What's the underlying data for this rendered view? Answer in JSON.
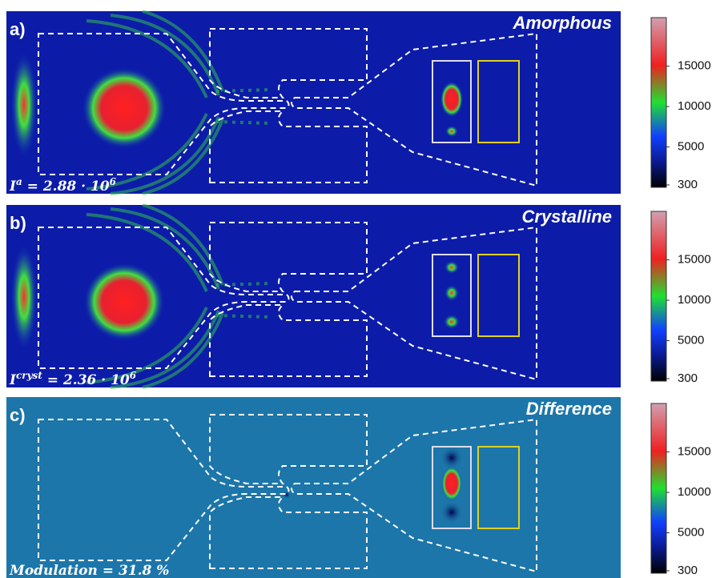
{
  "panels": [
    {
      "label": "a)",
      "title": "Amorphous",
      "annotation": {
        "symbol": "I",
        "superscript": "a",
        "text": " = 2.88 · 10",
        "exponent": "6"
      },
      "colorbar": {
        "lim": [
          0,
          21000
        ],
        "ticks": [
          300,
          5000,
          10000,
          15000
        ]
      }
    },
    {
      "label": "b)",
      "title": "Crystalline",
      "annotation": {
        "symbol": "I",
        "superscript": "cryst",
        "text": " = 2.36 · 10",
        "exponent": "6"
      },
      "colorbar": {
        "lim": [
          0,
          21000
        ],
        "ticks": [
          300,
          5000,
          10000,
          15000
        ]
      }
    },
    {
      "label": "c)",
      "title": "Difference",
      "annotation": {
        "text": "Modulation = 31.8 %"
      },
      "colorbar": {
        "lim": [
          0,
          21000
        ],
        "ticks": [
          300,
          5000,
          10000,
          15000
        ]
      }
    }
  ]
}
